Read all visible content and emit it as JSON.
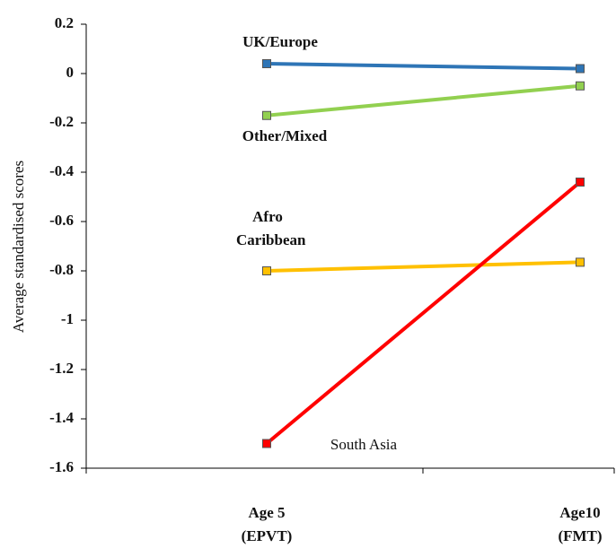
{
  "chart_data": {
    "type": "line",
    "y_label": "Average standardised scores",
    "categories": [
      "Age 5 (EPVT)",
      "Age10 (FMT)"
    ],
    "series": [
      {
        "name": "UK/Europe",
        "color": "#2e75b6",
        "values": [
          0.04,
          0.02
        ]
      },
      {
        "name": "Other/Mixed",
        "color": "#92d050",
        "values": [
          -0.17,
          -0.05
        ]
      },
      {
        "name": "Afro Caribbean",
        "color": "#ffc000",
        "values": [
          -0.8,
          -0.765
        ]
      },
      {
        "name": "South Asia",
        "color": "#ff0000",
        "values": [
          -1.5,
          -0.44
        ]
      }
    ],
    "ylim": [
      -1.6,
      0.2
    ],
    "yticks": [
      -1.6,
      -1.4,
      -1.2,
      -1,
      -0.8,
      -0.6,
      -0.4,
      -0.2,
      0,
      0.2
    ],
    "grid": false
  }
}
